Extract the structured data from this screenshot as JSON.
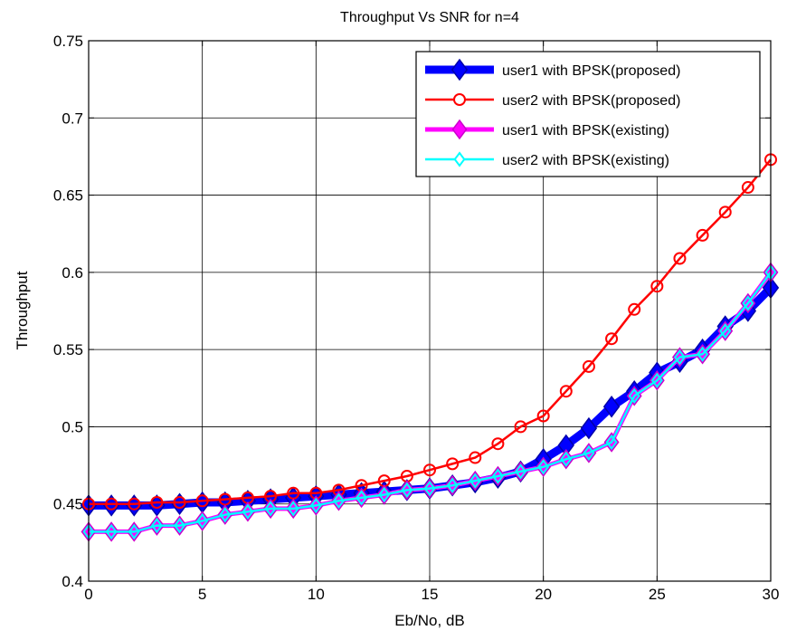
{
  "chart_data": {
    "type": "line",
    "title": "Throughput Vs SNR for n=4",
    "xlabel": "Eb/No, dB",
    "ylabel": "Throughput",
    "xlim": [
      0,
      30
    ],
    "ylim": [
      0.4,
      0.75
    ],
    "xticks": [
      0,
      5,
      10,
      15,
      20,
      25,
      30
    ],
    "xtick_labels": [
      "0",
      "5",
      "10",
      "15",
      "20",
      "25",
      "30"
    ],
    "yticks": [
      0.4,
      0.45,
      0.5,
      0.55,
      0.6,
      0.65,
      0.7,
      0.75
    ],
    "ytick_labels": [
      "0.4",
      "0.45",
      "0.5",
      "0.55",
      "0.6",
      "0.65",
      "0.7",
      "0.75"
    ],
    "grid": true,
    "legend_position": "top-right",
    "x": [
      0,
      1,
      2,
      3,
      4,
      5,
      6,
      7,
      8,
      9,
      10,
      11,
      12,
      13,
      14,
      15,
      16,
      17,
      18,
      19,
      20,
      21,
      22,
      23,
      24,
      25,
      26,
      27,
      28,
      29,
      30
    ],
    "series": [
      {
        "name": "user1 with BPSK(proposed)",
        "color": "#0000ff",
        "marker": "diamond",
        "values": [
          0.449,
          0.449,
          0.449,
          0.449,
          0.45,
          0.451,
          0.451,
          0.452,
          0.453,
          0.454,
          0.455,
          0.456,
          0.457,
          0.458,
          0.459,
          0.46,
          0.462,
          0.464,
          0.467,
          0.471,
          0.479,
          0.488,
          0.499,
          0.513,
          0.523,
          0.535,
          0.542,
          0.55,
          0.565,
          0.575,
          0.59
        ]
      },
      {
        "name": "user2 with BPSK(proposed)",
        "color": "#ff0000",
        "marker": "circle",
        "values": [
          0.45,
          0.45,
          0.45,
          0.451,
          0.451,
          0.452,
          0.453,
          0.454,
          0.455,
          0.457,
          0.457,
          0.459,
          0.462,
          0.465,
          0.468,
          0.472,
          0.476,
          0.48,
          0.489,
          0.5,
          0.507,
          0.523,
          0.539,
          0.557,
          0.576,
          0.591,
          0.609,
          0.624,
          0.639,
          0.655,
          0.673
        ]
      },
      {
        "name": "user1 with BPSK(existing)",
        "color": "#ff00ff",
        "marker": "diamond",
        "values": [
          0.432,
          0.432,
          0.432,
          0.436,
          0.436,
          0.439,
          0.443,
          0.445,
          0.447,
          0.447,
          0.449,
          0.452,
          0.454,
          0.456,
          0.459,
          0.46,
          0.462,
          0.465,
          0.468,
          0.471,
          0.474,
          0.479,
          0.483,
          0.49,
          0.52,
          0.53,
          0.545,
          0.547,
          0.562,
          0.58,
          0.6
        ]
      },
      {
        "name": "user2 with BPSK(existing)",
        "color": "#00ffff",
        "marker": "diamond",
        "values": [
          0.432,
          0.432,
          0.432,
          0.436,
          0.436,
          0.439,
          0.443,
          0.445,
          0.447,
          0.447,
          0.449,
          0.452,
          0.454,
          0.456,
          0.459,
          0.46,
          0.462,
          0.465,
          0.468,
          0.471,
          0.474,
          0.479,
          0.483,
          0.49,
          0.52,
          0.53,
          0.545,
          0.547,
          0.562,
          0.58,
          0.6
        ]
      }
    ]
  }
}
